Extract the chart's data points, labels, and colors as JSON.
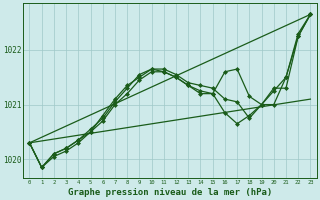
{
  "background_color": "#ceeaea",
  "grid_color": "#a0c8c8",
  "line_color": "#1a5c1a",
  "xlabel": "Graphe pression niveau de la mer (hPa)",
  "xlabel_fontsize": 6.5,
  "yticks": [
    1020,
    1021,
    1022
  ],
  "xticks": [
    0,
    1,
    2,
    3,
    4,
    5,
    6,
    7,
    8,
    9,
    10,
    11,
    12,
    13,
    14,
    15,
    16,
    17,
    18,
    19,
    20,
    21,
    22,
    23
  ],
  "xlim": [
    -0.5,
    23.5
  ],
  "ylim": [
    1019.65,
    1022.85
  ],
  "series": [
    {
      "x": [
        0,
        23
      ],
      "y": [
        1020.3,
        1021.1
      ],
      "marker": null,
      "lw": 0.9
    },
    {
      "x": [
        0,
        23
      ],
      "y": [
        1020.3,
        1022.65
      ],
      "marker": null,
      "lw": 0.9
    },
    {
      "x": [
        0,
        1,
        2,
        3,
        4,
        5,
        6,
        7,
        8,
        9,
        10,
        11,
        12,
        13,
        14,
        15,
        16,
        17,
        18,
        19,
        20,
        21,
        22,
        23
      ],
      "y": [
        1020.3,
        1019.85,
        1020.1,
        1020.2,
        1020.35,
        1020.5,
        1020.7,
        1021.0,
        1021.2,
        1021.45,
        1021.6,
        1021.6,
        1021.5,
        1021.35,
        1021.2,
        1021.2,
        1020.85,
        1020.65,
        1020.8,
        1021.0,
        1021.25,
        1021.5,
        1022.25,
        1022.65
      ],
      "marker": "D",
      "lw": 0.9
    },
    {
      "x": [
        0,
        1,
        2,
        3,
        4,
        5,
        6,
        7,
        8,
        9,
        10,
        11,
        12,
        13,
        14,
        15,
        16,
        17,
        18,
        19,
        20,
        21,
        22,
        23
      ],
      "y": [
        1020.3,
        1019.85,
        1020.05,
        1020.15,
        1020.3,
        1020.5,
        1020.8,
        1021.1,
        1021.35,
        1021.5,
        1021.65,
        1021.65,
        1021.55,
        1021.4,
        1021.35,
        1021.3,
        1021.1,
        1021.05,
        1020.75,
        1021.0,
        1021.3,
        1021.3,
        1022.25,
        1022.65
      ],
      "marker": "D",
      "lw": 0.9
    },
    {
      "x": [
        0,
        1,
        2,
        3,
        4,
        5,
        6,
        7,
        8,
        9,
        10,
        11,
        12,
        13,
        14,
        15,
        16,
        17,
        18,
        19,
        20,
        21,
        22,
        23
      ],
      "y": [
        1020.3,
        1019.85,
        1020.1,
        1020.2,
        1020.35,
        1020.55,
        1020.75,
        1021.05,
        1021.3,
        1021.55,
        1021.65,
        1021.6,
        1021.5,
        1021.35,
        1021.25,
        1021.2,
        1021.6,
        1021.65,
        1021.15,
        1021.0,
        1021.0,
        1021.5,
        1022.3,
        1022.65
      ],
      "marker": "D",
      "lw": 0.9
    }
  ]
}
